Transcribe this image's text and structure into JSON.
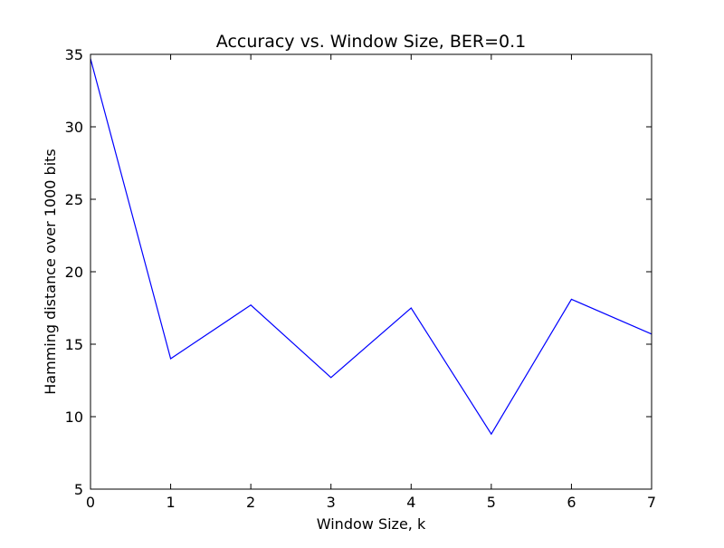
{
  "chart_data": {
    "type": "line",
    "title": "Accuracy vs. Window Size, BER=0.1",
    "xlabel": "Window Size, k",
    "ylabel": "Hamming distance over 1000 bits",
    "xlim": [
      0,
      7
    ],
    "ylim": [
      5,
      35
    ],
    "xticks": [
      0,
      1,
      2,
      3,
      4,
      5,
      6,
      7
    ],
    "yticks": [
      5,
      10,
      15,
      20,
      25,
      30,
      35
    ],
    "grid": false,
    "series": [
      {
        "color": "#0000ff",
        "x": [
          0,
          1,
          2,
          3,
          4,
          5,
          6,
          7
        ],
        "y": [
          34.7,
          14.0,
          17.7,
          12.7,
          17.5,
          8.8,
          18.1,
          15.7
        ]
      }
    ]
  }
}
